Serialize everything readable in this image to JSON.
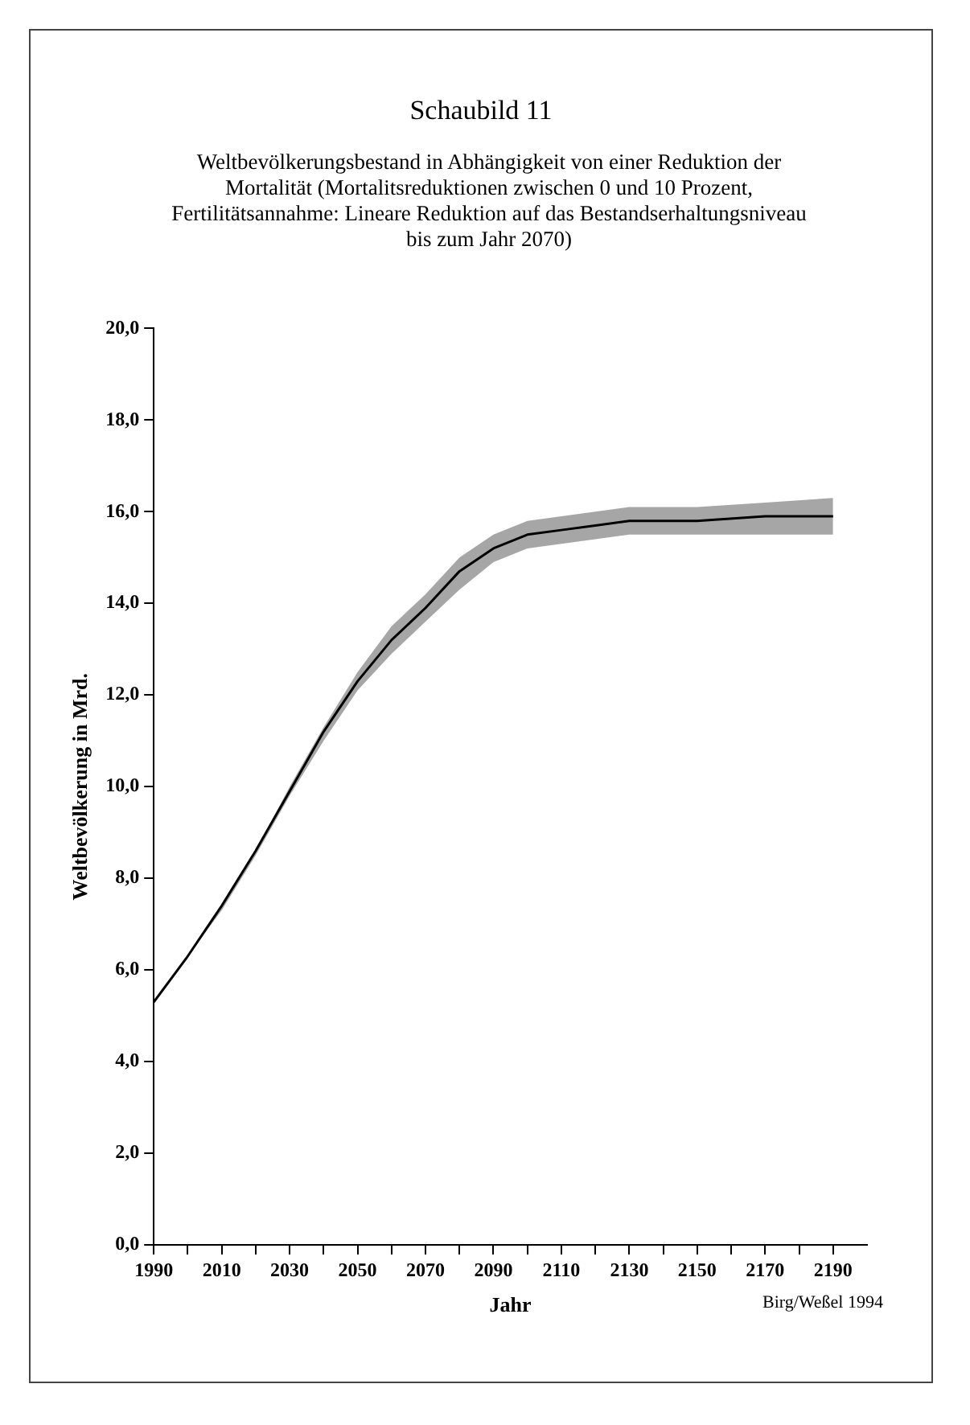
{
  "chart_data": {
    "type": "line",
    "title": "Schaubild 11",
    "subtitle": "Weltbevölkerungsbestand in Abhängigkeit von einer Reduktion der Mortalität (Mortalitsreduktionen zwischen 0 und 10 Prozent, Fertilitätsannahme: Lineare Reduktion auf das Bestandserhaltungsniveau bis zum Jahr 2070)",
    "xlabel": "Jahr",
    "ylabel": "Weltbevölkerung in Mrd.",
    "annotations": [
      "Birg/Weßel 1994"
    ],
    "x": [
      1990,
      2000,
      2010,
      2020,
      2030,
      2040,
      2050,
      2060,
      2070,
      2080,
      2090,
      2100,
      2110,
      2120,
      2130,
      2150,
      2170,
      2190
    ],
    "series": [
      {
        "color": "#000000",
        "values": [
          5.3,
          6.3,
          7.4,
          8.6,
          9.9,
          11.2,
          12.3,
          13.2,
          13.9,
          14.7,
          15.2,
          15.5,
          15.6,
          15.7,
          15.8,
          15.8,
          15.9,
          15.9
        ],
        "lower": [
          5.3,
          6.3,
          7.3,
          8.5,
          9.8,
          11.0,
          12.1,
          12.9,
          13.6,
          14.3,
          14.9,
          15.2,
          15.3,
          15.4,
          15.5,
          15.5,
          15.5,
          15.5
        ],
        "upper": [
          5.3,
          6.3,
          7.4,
          8.6,
          10.0,
          11.3,
          12.5,
          13.5,
          14.2,
          15.0,
          15.5,
          15.8,
          15.9,
          16.0,
          16.1,
          16.1,
          16.2,
          16.3
        ]
      }
    ],
    "xlim": [
      1990,
      2200
    ],
    "xticks": [
      1990,
      {
        "value": 2000,
        "label": null
      },
      2010,
      {
        "value": 2020,
        "label": null
      },
      2030,
      {
        "value": 2040,
        "label": null
      },
      2050,
      {
        "value": 2060,
        "label": null
      },
      2070,
      {
        "value": 2080,
        "label": null
      },
      2090,
      {
        "value": 2100,
        "label": null
      },
      2110,
      {
        "value": 2120,
        "label": null
      },
      2130,
      {
        "value": 2140,
        "label": null
      },
      2150,
      {
        "value": 2160,
        "label": null
      },
      2170,
      {
        "value": 2180,
        "label": null
      },
      2190
    ],
    "ylim": [
      0,
      20
    ],
    "yticks": [
      {
        "value": 0,
        "label": "0,0"
      },
      {
        "value": 2,
        "label": "2,0"
      },
      {
        "value": 4,
        "label": "4,0"
      },
      {
        "value": 6,
        "label": "6,0"
      },
      {
        "value": 8,
        "label": "8,0"
      },
      {
        "value": 10,
        "label": "10,0"
      },
      {
        "value": 12,
        "label": "12,0"
      },
      {
        "value": 14,
        "label": "14,0"
      },
      {
        "value": 16,
        "label": "16,0"
      },
      {
        "value": 18,
        "label": "18,0"
      },
      {
        "value": 20,
        "label": "20,0"
      }
    ],
    "grid": false,
    "legend": false,
    "marker": "none",
    "line_style": "solid"
  }
}
